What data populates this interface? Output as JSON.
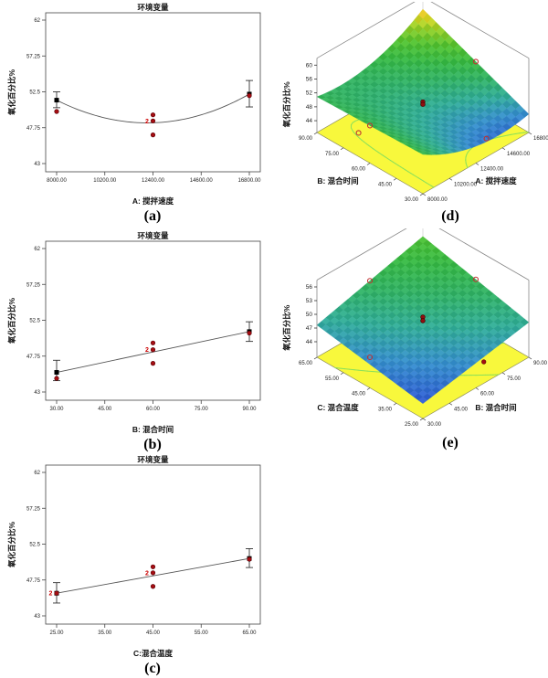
{
  "colors": {
    "design_point": "#a50d12",
    "design_point_edge": "#550006",
    "predicted_marker": "#000000",
    "error_bar": "#333333",
    "curve": "#555555",
    "count_label": "#cc0000",
    "floor": "#f8f83c",
    "floor_edge": "#8a8a5a",
    "contour": "#8ae05a",
    "frame": "#888888",
    "open_marker_ring": "#c03030",
    "surface_stops": [
      [
        43.5,
        "#2a50d8"
      ],
      [
        46,
        "#338fd0"
      ],
      [
        48,
        "#2fae9a"
      ],
      [
        50,
        "#2fb465"
      ],
      [
        52,
        "#35bb42"
      ],
      [
        54,
        "#52c52e"
      ],
      [
        56,
        "#9ad224"
      ],
      [
        57.5,
        "#e6da20"
      ],
      [
        59,
        "#f0921c"
      ],
      [
        60.5,
        "#e05614"
      ]
    ]
  },
  "chart_data": {
    "panels_2d": [
      {
        "type": "line",
        "caption": "(a)",
        "title": "环境变量",
        "xlabel": "A: 搅拌速度",
        "ylabel": "氧化百分比%",
        "x_range": [
          8000,
          16800
        ],
        "x_tick_values": [
          8000,
          10200,
          12400,
          14600,
          16800
        ],
        "x_tick_labels": [
          "8000.00",
          "10200.00",
          "12400.00",
          "14600.00",
          "16800.00"
        ],
        "y_tick_values": [
          43,
          47.75,
          52.5,
          57.25,
          62
        ],
        "y_tick_labels": [
          "43",
          "47.75",
          "52.5",
          "57.25",
          "62"
        ],
        "curve_type": "quadratic",
        "curve_points": [
          [
            8000,
            51.4
          ],
          [
            12400,
            48.4
          ],
          [
            16800,
            52.2
          ]
        ],
        "predicted": [
          {
            "x": 8000,
            "y": 51.4,
            "lo": 50.4,
            "hi": 52.5
          },
          {
            "x": 16800,
            "y": 52.2,
            "lo": 50.5,
            "hi": 54.0
          }
        ],
        "points": [
          {
            "x": 8000,
            "y": 49.9
          },
          {
            "x": 12400,
            "y": 49.45
          },
          {
            "x": 12400,
            "y": 48.65,
            "count": "2"
          },
          {
            "x": 12400,
            "y": 46.8
          },
          {
            "x": 16800,
            "y": 52.0
          }
        ]
      },
      {
        "type": "line",
        "caption": "(b)",
        "title": "环境变量",
        "xlabel": "B: 混合时间",
        "ylabel": "氧化百分比%",
        "x_range": [
          30,
          90
        ],
        "x_tick_values": [
          30,
          45,
          60,
          75,
          90
        ],
        "x_tick_labels": [
          "30.00",
          "45.00",
          "60.00",
          "75.00",
          "90.00"
        ],
        "y_tick_values": [
          43,
          47.75,
          52.5,
          57.25,
          62
        ],
        "y_tick_labels": [
          "43",
          "47.75",
          "52.5",
          "57.25",
          "62"
        ],
        "curve_type": "linear",
        "curve_points": [
          [
            30,
            45.6
          ],
          [
            90,
            51.0
          ]
        ],
        "predicted": [
          {
            "x": 30,
            "y": 45.6,
            "lo": 44.5,
            "hi": 47.2
          },
          {
            "x": 90,
            "y": 51.0,
            "lo": 49.7,
            "hi": 52.3
          }
        ],
        "points": [
          {
            "x": 30,
            "y": 44.8
          },
          {
            "x": 60,
            "y": 49.5
          },
          {
            "x": 60,
            "y": 48.6,
            "count": "2"
          },
          {
            "x": 60,
            "y": 46.8
          },
          {
            "x": 90,
            "y": 50.8
          }
        ]
      },
      {
        "type": "line",
        "caption": "(c)",
        "title": "环境变量",
        "xlabel": "C:混合温度",
        "ylabel": "氧化百分比%",
        "x_range": [
          25,
          65
        ],
        "x_tick_values": [
          25,
          35,
          45,
          55,
          65
        ],
        "x_tick_labels": [
          "25.00",
          "35.00",
          "45.00",
          "55.00",
          "65.00"
        ],
        "y_tick_values": [
          43,
          47.75,
          52.5,
          57.25,
          62
        ],
        "y_tick_labels": [
          "43",
          "47.75",
          "52.5",
          "57.25",
          "62"
        ],
        "curve_type": "linear",
        "curve_points": [
          [
            25,
            46.0
          ],
          [
            65,
            50.6
          ]
        ],
        "predicted": [
          {
            "x": 25,
            "y": 46.0,
            "lo": 44.7,
            "hi": 47.4,
            "count": "2"
          },
          {
            "x": 65,
            "y": 50.6,
            "lo": 49.4,
            "hi": 51.9
          }
        ],
        "points": [
          {
            "x": 25,
            "y": 46.0
          },
          {
            "x": 45,
            "y": 49.5
          },
          {
            "x": 45,
            "y": 48.7,
            "count": "2"
          },
          {
            "x": 45,
            "y": 46.9
          },
          {
            "x": 65,
            "y": 50.5
          }
        ]
      }
    ],
    "panels_3d": [
      {
        "type": "surface3d",
        "caption": "(d)",
        "zlabel": "氧化百分比%",
        "z_tick_values": [
          44,
          48,
          52,
          56,
          60
        ],
        "z_tick_labels": [
          "44",
          "48",
          "52",
          "56",
          "60"
        ],
        "x_axis": {
          "label": "A: 搅拌速度",
          "range": [
            8000,
            16800
          ],
          "tick_labels": [
            "8000.00",
            "10200.00",
            "12400.00",
            "14600.00",
            "16800.00"
          ]
        },
        "y_axis": {
          "label": "B: 混合时间",
          "range": [
            30,
            90
          ],
          "tick_labels": [
            "30.00",
            "45.00",
            "60.00",
            "75.00",
            "90.00"
          ]
        },
        "model": {
          "c0": 48.35,
          "lu": 0.4,
          "qu": 3.45,
          "lv": 2.9,
          "qv": 0,
          "ab": 3.4
        },
        "contour_levels": [
          46,
          50
        ],
        "center_points": [
          {
            "u_val": 12400,
            "v_val": 60,
            "z": 49.4
          },
          {
            "u_val": 12400,
            "v_val": 60,
            "z": 48.7
          }
        ],
        "open_markers": [
          {
            "u_val": 8000,
            "v_val": 60,
            "on": "surface"
          },
          {
            "u_val": 16800,
            "v_val": 60,
            "on": "surface"
          },
          {
            "u_val": 9700,
            "v_val": 78,
            "on": "floor"
          },
          {
            "u_val": 14600,
            "v_val": 39,
            "on": "floor"
          }
        ]
      },
      {
        "type": "surface3d",
        "caption": "(e)",
        "zlabel": "氧化百分比%",
        "z_tick_values": [
          44,
          47,
          50,
          53,
          56
        ],
        "z_tick_labels": [
          "44",
          "47",
          "50",
          "53",
          "56"
        ],
        "x_axis": {
          "label": "B: 混合时间",
          "range": [
            30,
            90
          ],
          "tick_labels": [
            "30.00",
            "45.00",
            "60.00",
            "75.00",
            "90.00"
          ]
        },
        "y_axis": {
          "label": "C: 混合温度",
          "range": [
            25,
            65
          ],
          "tick_labels": [
            "25.00",
            "35.00",
            "45.00",
            "55.00",
            "65.00"
          ]
        },
        "model": {
          "c0": 48.35,
          "lu": 2.6,
          "qu": 0,
          "lv": 2.3,
          "qv": 0,
          "ab": 0.4
        },
        "contour_levels": [
          47,
          49.5
        ],
        "center_points": [
          {
            "u_val": 60,
            "v_val": 45,
            "z": 49.4
          },
          {
            "u_val": 60,
            "v_val": 45,
            "z": 48.6
          }
        ],
        "open_markers": [
          {
            "u_val": 60,
            "v_val": 65,
            "on": "surface"
          },
          {
            "u_val": 90,
            "v_val": 45,
            "on": "surface"
          },
          {
            "u_val": 45,
            "v_val": 55,
            "on": "floor"
          },
          {
            "u_val": 75,
            "v_val": 32,
            "on": "floor",
            "filled": true
          }
        ]
      }
    ]
  }
}
